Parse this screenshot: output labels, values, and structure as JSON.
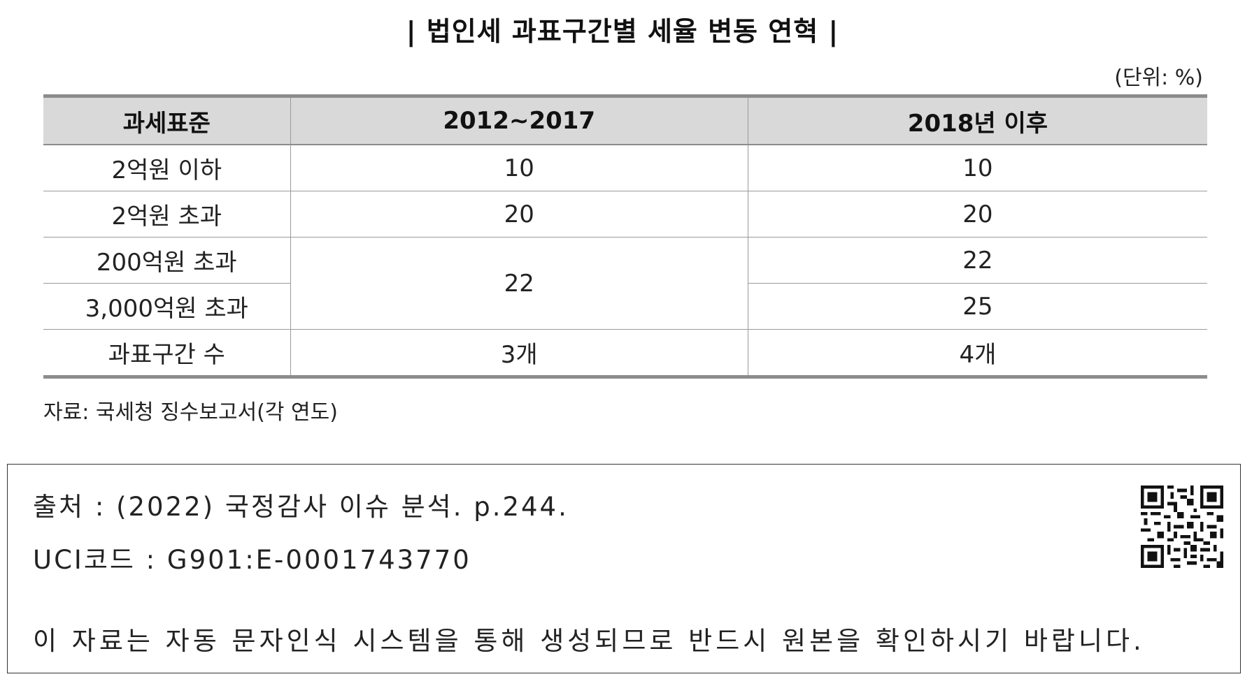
{
  "title": "| 법인세 과표구간별 세율 변동 연혁 |",
  "unit": "(단위: %)",
  "table": {
    "headers": [
      "과세표준",
      "2012~2017",
      "2018년 이후"
    ],
    "rows": [
      {
        "bracket": "2억원 이하",
        "p2012": "10",
        "p2018": "10"
      },
      {
        "bracket": "2억원 초과",
        "p2012": "20",
        "p2018": "20"
      },
      {
        "bracket": "200억원 초과",
        "p2012": "22",
        "p2018": "22"
      },
      {
        "bracket": "3,000억원 초과",
        "p2018": "25"
      },
      {
        "bracket": "과표구간 수",
        "p2012": "3개",
        "p2018": "4개"
      }
    ]
  },
  "source": "자료: 국세청 징수보고서(각 연도)",
  "info": {
    "citation": "출처 : (2022) 국정감사 이슈 분석. p.244.",
    "uci": "UCI코드 : G901:E-0001743770",
    "notice": "이 자료는 자동 문자인식 시스템을 통해 생성되므로 반드시 원본을 확인하시기 바랍니다."
  }
}
